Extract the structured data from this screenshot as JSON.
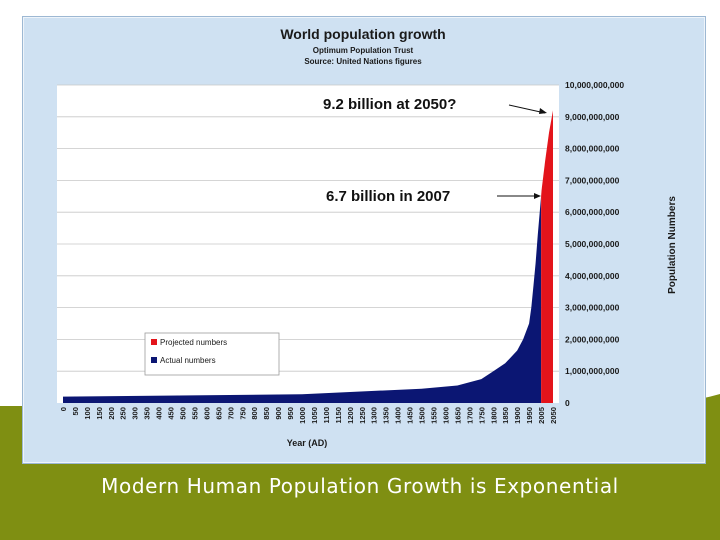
{
  "slide": {
    "caption": "Modern Human Population Growth is Exponential",
    "colors": {
      "band": "#7f8f12",
      "frame": "#cfe1f2",
      "actual": "#0b1673",
      "projected": "#e3141b"
    }
  },
  "chart_data": {
    "type": "area",
    "title": "World population growth",
    "subtitle_lines": [
      "Optimum Population Trust",
      "Source: United Nations figures"
    ],
    "xlabel": "Year (AD)",
    "ylabel": "Population Numbers",
    "ylim": [
      0,
      10000000000
    ],
    "grid": true,
    "y_axis_side": "right",
    "x_ticks": [
      "0",
      "50",
      "100",
      "150",
      "200",
      "250",
      "300",
      "350",
      "400",
      "450",
      "500",
      "550",
      "600",
      "650",
      "700",
      "750",
      "800",
      "850",
      "900",
      "950",
      "1000",
      "1050",
      "1100",
      "1150",
      "1200",
      "1250",
      "1300",
      "1350",
      "1400",
      "1450",
      "1500",
      "1550",
      "1600",
      "1650",
      "1700",
      "1750",
      "1800",
      "1850",
      "1900",
      "1950",
      "2005",
      "2050"
    ],
    "y_ticks": [
      "0",
      "1,000,000,000",
      "2,000,000,000",
      "3,000,000,000",
      "4,000,000,000",
      "5,000,000,000",
      "6,000,000,000",
      "7,000,000,000",
      "8,000,000,000",
      "9,000,000,000",
      "10,000,000,000"
    ],
    "series": [
      {
        "name": "Actual numbers",
        "color": "#0b1673",
        "x": [
          0,
          1000,
          1500,
          1650,
          1750,
          1800,
          1850,
          1900,
          1925,
          1950,
          1960,
          1970,
          1980,
          1990,
          2000,
          2005
        ],
        "values": [
          200000000,
          275000000,
          450000000,
          550000000,
          750000000,
          1000000000,
          1250000000,
          1650000000,
          2000000000,
          2500000000,
          3000000000,
          3700000000,
          4400000000,
          5300000000,
          6100000000,
          6500000000
        ]
      },
      {
        "name": "Projected numbers",
        "color": "#e3141b",
        "x": [
          2005,
          2007,
          2020,
          2035,
          2050
        ],
        "values": [
          6500000000,
          6700000000,
          7600000000,
          8500000000,
          9200000000
        ]
      }
    ],
    "legend": {
      "position": "bottom-left",
      "entries": [
        "Projected numbers",
        "Actual numbers"
      ]
    },
    "annotations": [
      {
        "text": "9.2 billion at 2050?",
        "x": 2050,
        "y": 9200000000
      },
      {
        "text": "6.7 billion in 2007",
        "x": 2007,
        "y": 6700000000
      }
    ]
  }
}
